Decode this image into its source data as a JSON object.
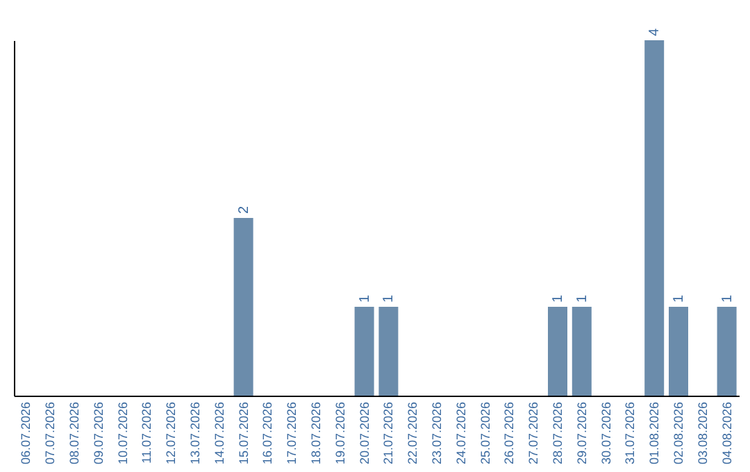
{
  "chart_data": {
    "type": "bar",
    "categories": [
      "06.07.2026",
      "07.07.2026",
      "08.07.2026",
      "09.07.2026",
      "10.07.2026",
      "11.07.2026",
      "12.07.2026",
      "13.07.2026",
      "14.07.2026",
      "15.07.2026",
      "16.07.2026",
      "17.07.2026",
      "18.07.2026",
      "19.07.2026",
      "20.07.2026",
      "21.07.2026",
      "22.07.2026",
      "23.07.2026",
      "24.07.2026",
      "25.07.2026",
      "26.07.2026",
      "27.07.2026",
      "28.07.2026",
      "29.07.2026",
      "30.07.2026",
      "31.07.2026",
      "01.08.2026",
      "02.08.2026",
      "03.08.2026",
      "04.08.2026"
    ],
    "values": [
      0,
      0,
      0,
      0,
      0,
      0,
      0,
      0,
      0,
      2,
      0,
      0,
      0,
      0,
      1,
      1,
      0,
      0,
      0,
      0,
      0,
      0,
      1,
      1,
      0,
      0,
      4,
      1,
      0,
      1
    ],
    "value_labels": [
      null,
      null,
      null,
      null,
      null,
      null,
      null,
      null,
      null,
      "2",
      null,
      null,
      null,
      null,
      "1",
      "1",
      null,
      null,
      null,
      null,
      null,
      null,
      "1",
      "1",
      null,
      null,
      "4",
      "1",
      null,
      "1"
    ],
    "color": "#6b8cab",
    "ylim": [
      0,
      4
    ],
    "tick_labels": "x",
    "grid": false
  }
}
